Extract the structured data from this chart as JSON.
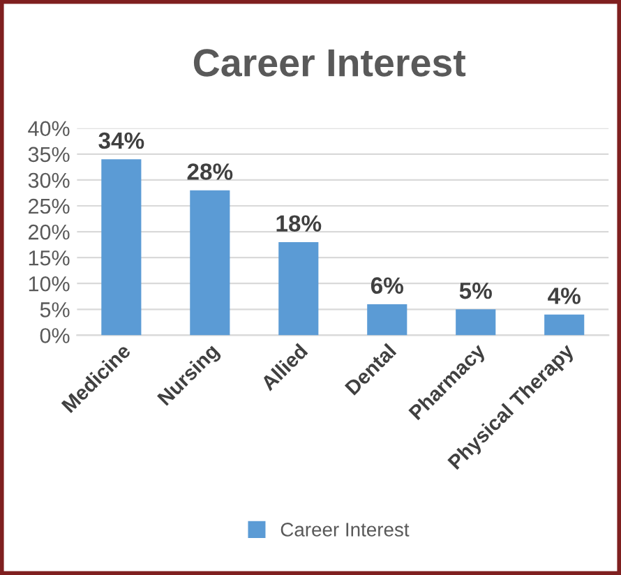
{
  "chart_data": {
    "type": "bar",
    "title": "Career Interest",
    "categories": [
      "Medicine",
      "Nursing",
      "Allied",
      "Dental",
      "Pharmacy",
      "Physical Therapy"
    ],
    "series": [
      {
        "name": "Career Interest",
        "color": "#5b9bd5",
        "values": [
          34,
          28,
          18,
          6,
          5,
          4
        ],
        "value_labels": [
          "34%",
          "28%",
          "18%",
          "6%",
          "5%",
          "4%"
        ]
      }
    ],
    "ylim": [
      0,
      40
    ],
    "yticks": [
      {
        "value": 0,
        "label": "0%"
      },
      {
        "value": 5,
        "label": "5%"
      },
      {
        "value": 10,
        "label": "10%"
      },
      {
        "value": 15,
        "label": "15%"
      },
      {
        "value": 20,
        "label": "20%"
      },
      {
        "value": 25,
        "label": "25%"
      },
      {
        "value": 30,
        "label": "30%"
      },
      {
        "value": 35,
        "label": "35%"
      },
      {
        "value": 40,
        "label": "40%"
      }
    ],
    "grid": "y",
    "legend": "bottom"
  }
}
